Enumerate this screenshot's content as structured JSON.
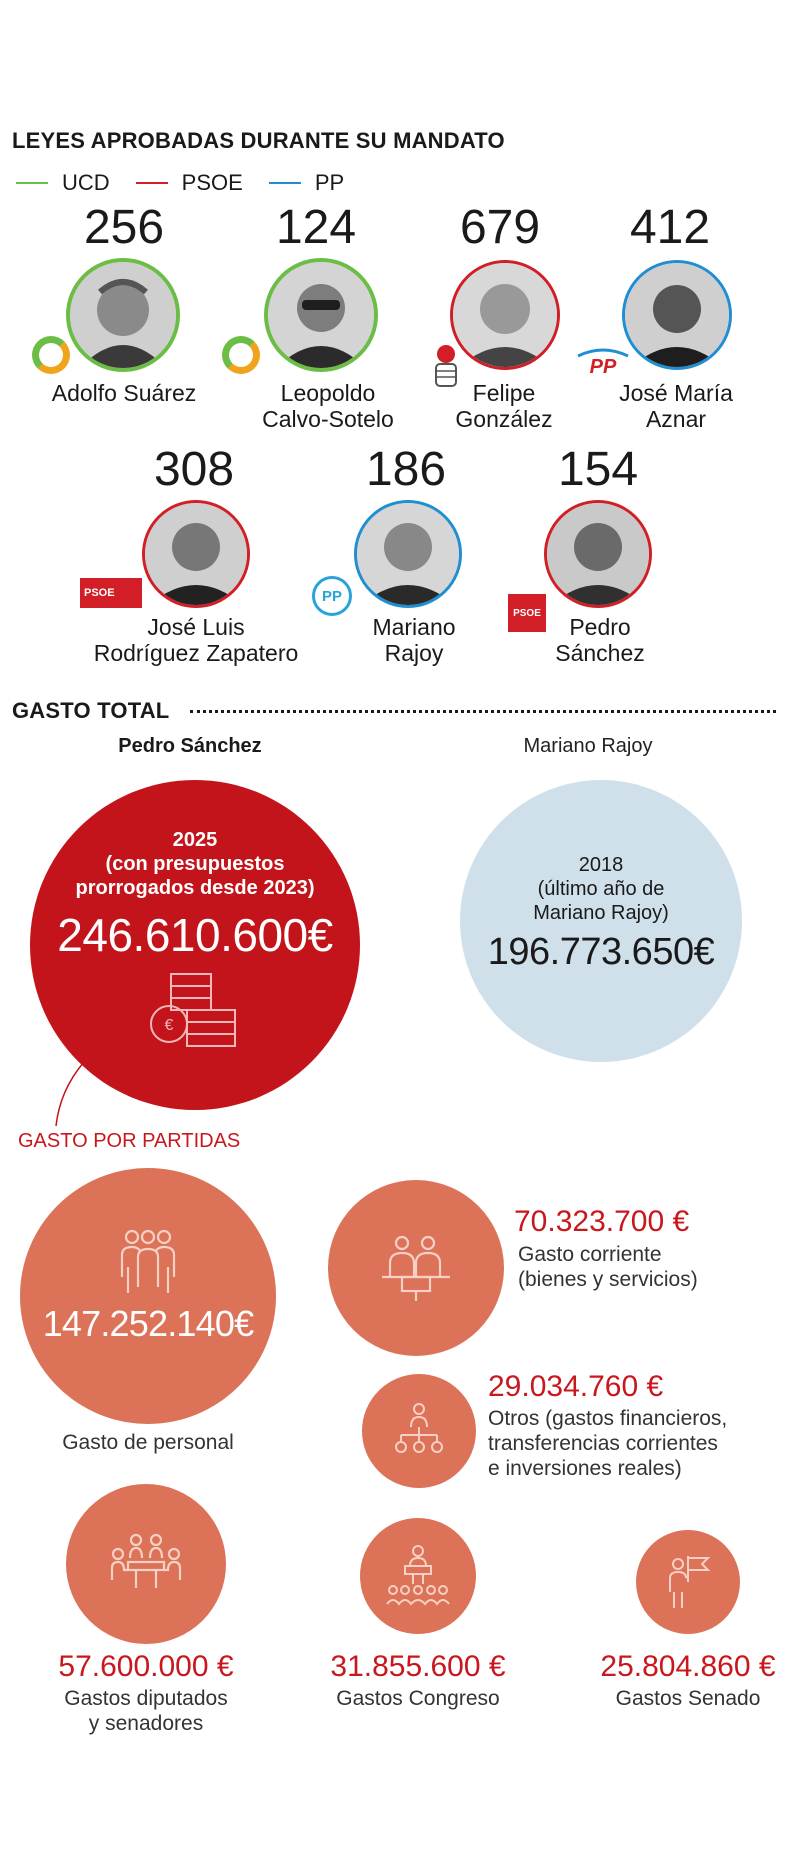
{
  "laws": {
    "title": "LEYES APROBADAS DURANTE SU MANDATO",
    "legend": [
      {
        "label": "UCD",
        "color": "#6cbd45"
      },
      {
        "label": "PSOE",
        "color": "#d21e26"
      },
      {
        "label": "PP",
        "color": "#1f8ed3"
      }
    ],
    "leaders": [
      {
        "count": "256",
        "name1": "Adolfo Suárez",
        "name2": "",
        "party": "UCD"
      },
      {
        "count": "124",
        "name1": "Leopoldo",
        "name2": "Calvo-Sotelo",
        "party": "UCD"
      },
      {
        "count": "679",
        "name1": "Felipe",
        "name2": "González",
        "party": "PSOE"
      },
      {
        "count": "412",
        "name1": "José María",
        "name2": "Aznar",
        "party": "PP"
      },
      {
        "count": "308",
        "name1": "José Luis",
        "name2": "Rodríguez Zapatero",
        "party": "PSOE"
      },
      {
        "count": "186",
        "name1": "Mariano",
        "name2": "Rajoy",
        "party": "PP"
      },
      {
        "count": "154",
        "name1": "Pedro",
        "name2": "Sánchez",
        "party": "PSOE"
      }
    ],
    "logo_text": {
      "pp": "PP",
      "psoe": "PSOE"
    }
  },
  "total": {
    "title": "GASTO TOTAL",
    "sanchez": {
      "name": "Pedro Sánchez",
      "line1": "2025",
      "line2": "(con presupuestos",
      "line3": "prorrogados desde 2023)",
      "amount": "246.610.600€"
    },
    "rajoy": {
      "name": "Mariano Rajoy",
      "line1": "2018",
      "line2": "(último año  de",
      "line3": "Mariano Rajoy)",
      "amount": "196.773.650€"
    },
    "colors": {
      "sanchez": "#c3141b",
      "rajoy": "#d0e0ea",
      "partidas": "#dc7258"
    }
  },
  "partidas": {
    "title": "GASTO POR PARTIDAS",
    "personal": {
      "amount": "147.252.140€",
      "label": "Gasto de personal"
    },
    "corriente": {
      "amount": "70.323.700 €",
      "label1": "Gasto corriente",
      "label2": "(bienes y servicios)"
    },
    "otros": {
      "amount": "29.034.760 €",
      "label1": "Otros (gastos financieros,",
      "label2": "transferencias corrientes",
      "label3": "e inversiones reales)"
    },
    "diputados": {
      "amount": "57.600.000 €",
      "label1": "Gastos diputados",
      "label2": "y senadores"
    },
    "congreso": {
      "amount": "31.855.600 €",
      "label1": "Gastos Congreso"
    },
    "senado": {
      "amount": "25.804.860 €",
      "label1": "Gastos Senado"
    }
  },
  "icons": [
    "people-group-icon",
    "office-desk-icon",
    "org-chart-icon",
    "meeting-table-icon",
    "podium-audience-icon",
    "flag-person-icon",
    "coins-icon"
  ]
}
